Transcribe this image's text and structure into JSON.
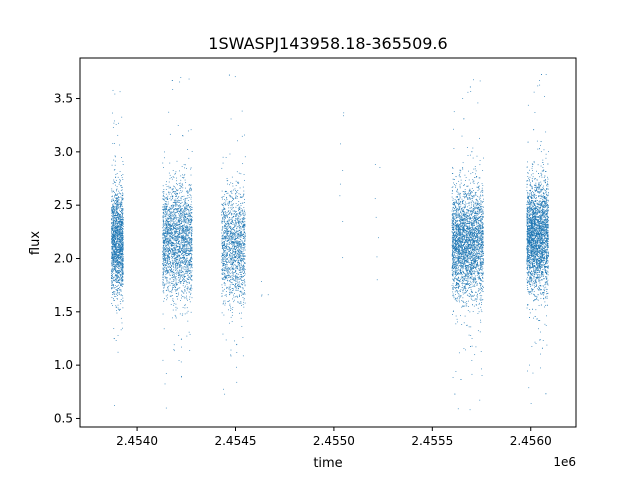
{
  "chart_data": {
    "type": "scatter",
    "title": "1SWASPJ143958.18-365509.6",
    "xlabel": "time",
    "ylabel": "flux",
    "x_offset_label": "1e6",
    "x_ticks": [
      2.454,
      2.4545,
      2.455,
      2.4555,
      2.456
    ],
    "x_tick_labels": [
      "2.4540",
      "2.4545",
      "2.4550",
      "2.4555",
      "2.4560"
    ],
    "y_ticks": [
      0.5,
      1.0,
      1.5,
      2.0,
      2.5,
      3.0,
      3.5
    ],
    "y_tick_labels": [
      "0.5",
      "1.0",
      "1.5",
      "2.0",
      "2.5",
      "3.0",
      "3.5"
    ],
    "xlim": [
      2.45371,
      2.45623
    ],
    "ylim": [
      0.42,
      3.88
    ],
    "grid": false,
    "marker_color": "#1f77b4",
    "clusters": [
      {
        "t_start": 2.45387,
        "t_end": 2.45393,
        "center": 2.16,
        "spread": 0.24,
        "min": 0.6,
        "max": 3.6,
        "count": 1700
      },
      {
        "t_start": 2.45413,
        "t_end": 2.45428,
        "center": 2.17,
        "spread": 0.26,
        "min": 0.57,
        "max": 3.7,
        "count": 2300
      },
      {
        "t_start": 2.45443,
        "t_end": 2.45455,
        "center": 2.12,
        "spread": 0.26,
        "min": 0.7,
        "max": 3.75,
        "count": 1500
      },
      {
        "t_start": 2.45463,
        "t_end": 2.45469,
        "center": 1.7,
        "spread": 0.1,
        "min": 1.55,
        "max": 1.85,
        "count": 4
      },
      {
        "t_start": 2.45503,
        "t_end": 2.45505,
        "center": 3.0,
        "spread": 0.8,
        "min": 1.7,
        "max": 3.4,
        "count": 8
      },
      {
        "t_start": 2.45521,
        "t_end": 2.45524,
        "center": 2.5,
        "spread": 0.5,
        "min": 1.8,
        "max": 2.9,
        "count": 7
      },
      {
        "t_start": 2.4556,
        "t_end": 2.45576,
        "center": 2.14,
        "spread": 0.25,
        "min": 0.57,
        "max": 3.7,
        "count": 3200
      },
      {
        "t_start": 2.45598,
        "t_end": 2.45609,
        "center": 2.2,
        "spread": 0.25,
        "min": 0.62,
        "max": 3.75,
        "count": 3200
      }
    ]
  }
}
